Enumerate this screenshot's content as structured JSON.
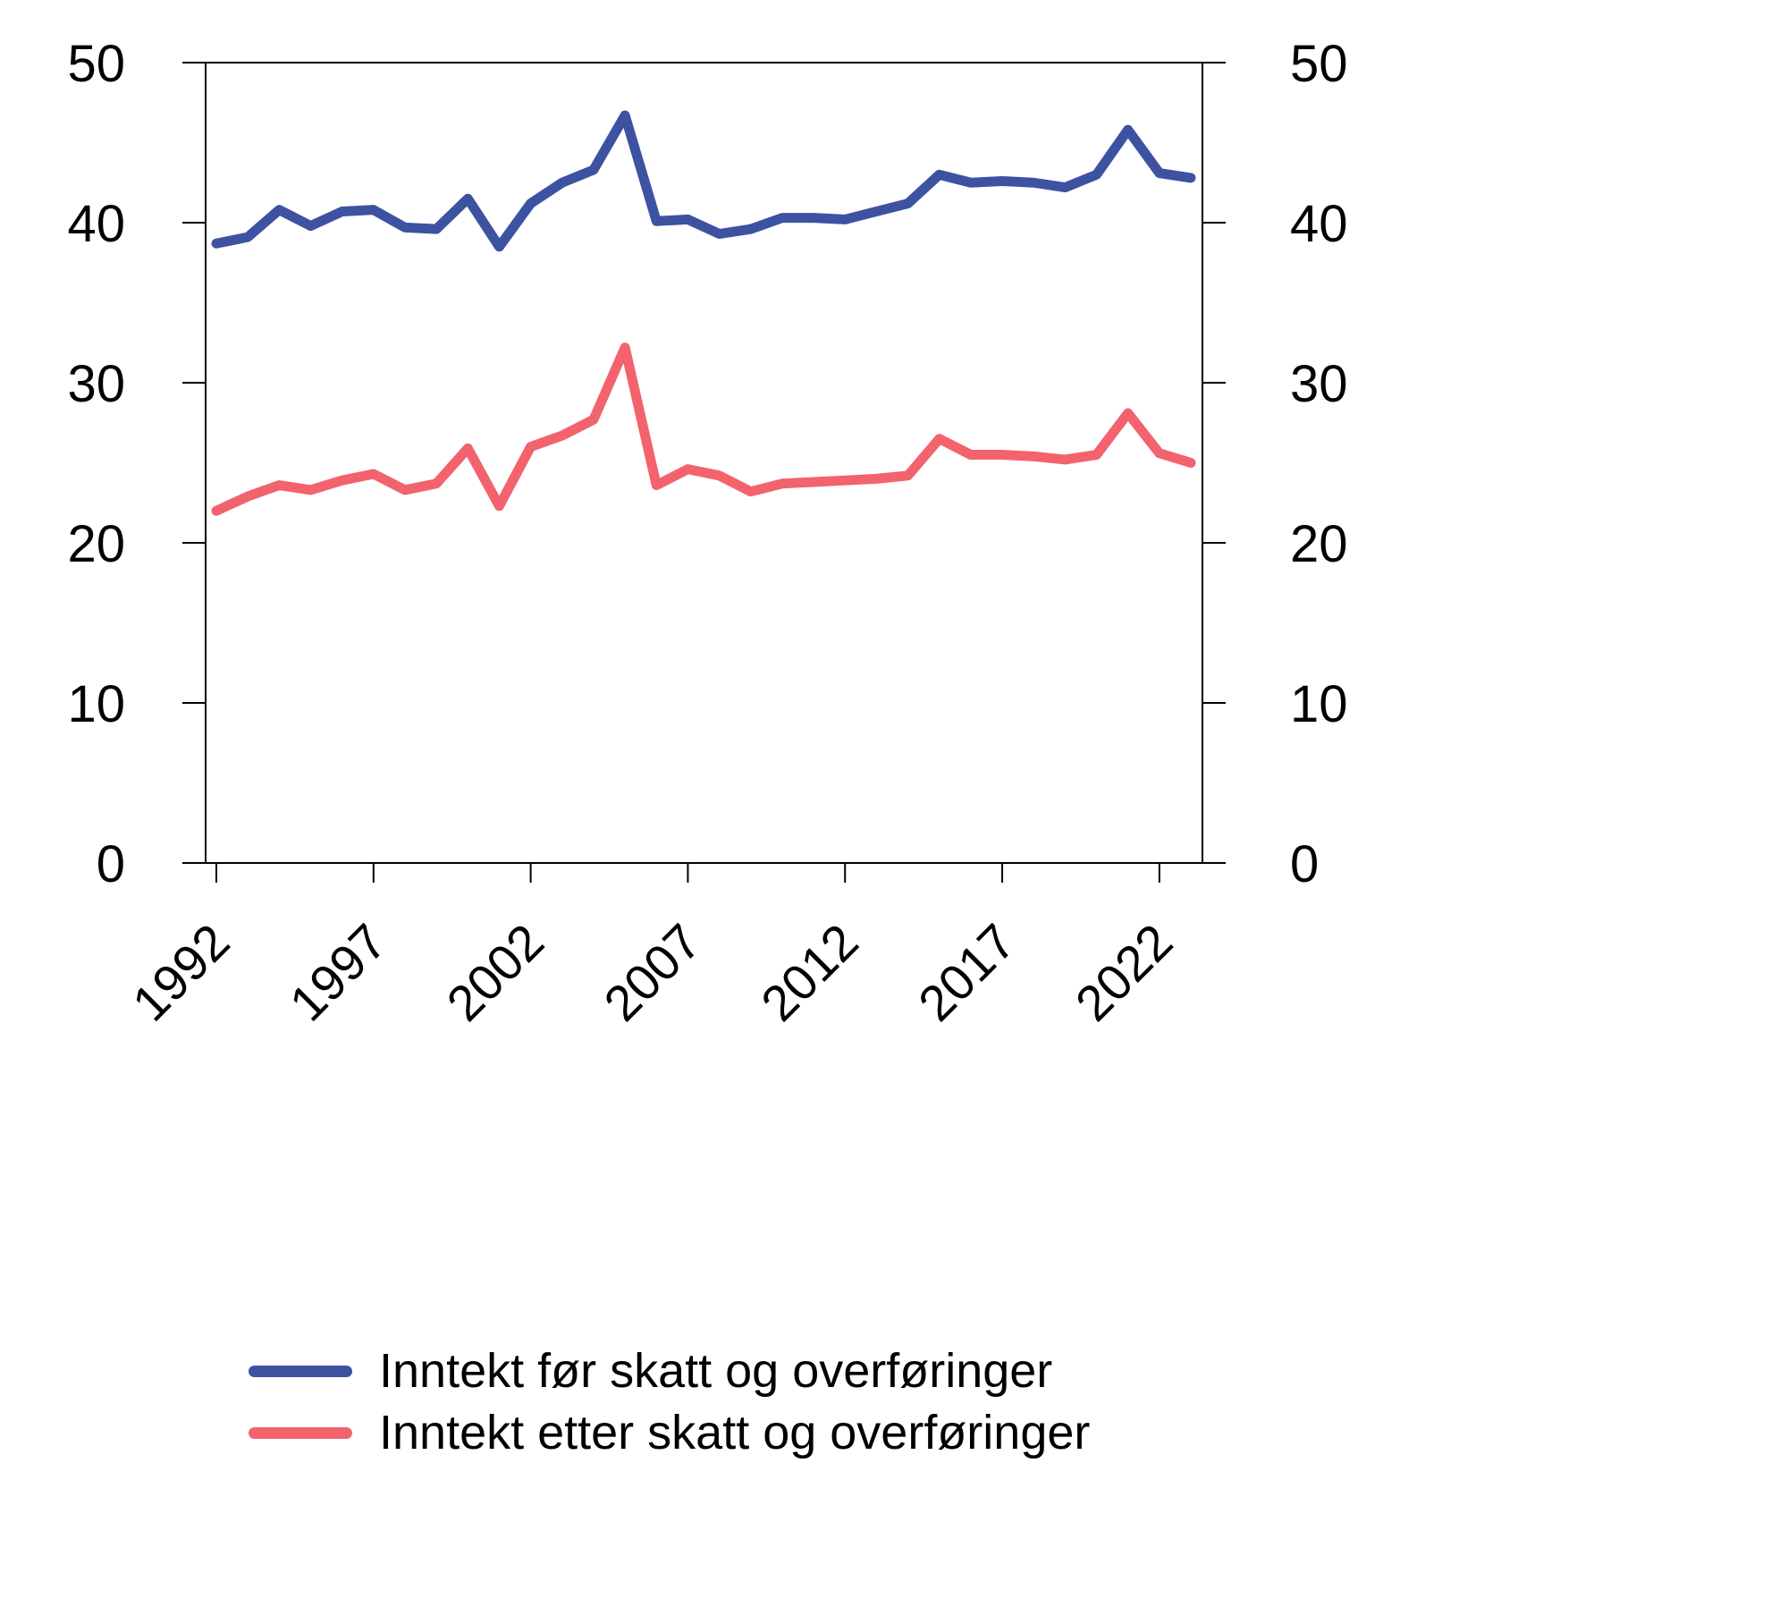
{
  "chart_data": {
    "type": "line",
    "title": "",
    "xlabel": "",
    "ylabel": "",
    "grid": false,
    "legend_position": "bottom",
    "frame": true,
    "ylim": [
      0,
      50
    ],
    "yticks": [
      0,
      10,
      20,
      30,
      40,
      50
    ],
    "yticks_right": true,
    "xticks": [
      1992,
      1997,
      2002,
      2007,
      2012,
      2017,
      2022
    ],
    "x": [
      1992,
      1993,
      1994,
      1995,
      1996,
      1997,
      1998,
      1999,
      2000,
      2001,
      2002,
      2003,
      2004,
      2005,
      2006,
      2007,
      2008,
      2009,
      2010,
      2011,
      2012,
      2013,
      2014,
      2015,
      2016,
      2017,
      2018,
      2019,
      2020,
      2021,
      2022,
      2023
    ],
    "series": [
      {
        "name": "Inntekt før skatt og overføringer",
        "color": "#3E52A2",
        "values": [
          38.7,
          39.1,
          40.8,
          39.8,
          40.7,
          40.8,
          39.7,
          39.6,
          41.5,
          38.5,
          41.2,
          42.5,
          43.3,
          46.7,
          40.1,
          40.2,
          39.3,
          39.6,
          40.3,
          40.3,
          40.2,
          40.7,
          41.2,
          43.0,
          42.5,
          42.6,
          42.5,
          42.2,
          43.0,
          45.8,
          43.1,
          42.8
        ]
      },
      {
        "name": "Inntekt etter skatt og overføringer",
        "color": "#F2636E",
        "values": [
          22.0,
          22.9,
          23.6,
          23.3,
          23.9,
          24.3,
          23.3,
          23.7,
          25.9,
          22.3,
          26.0,
          26.7,
          27.7,
          32.2,
          23.6,
          24.6,
          24.2,
          23.2,
          23.7,
          23.8,
          23.9,
          24.0,
          24.2,
          26.5,
          25.5,
          25.5,
          25.4,
          25.2,
          25.5,
          28.1,
          25.6,
          25.0
        ]
      }
    ]
  }
}
